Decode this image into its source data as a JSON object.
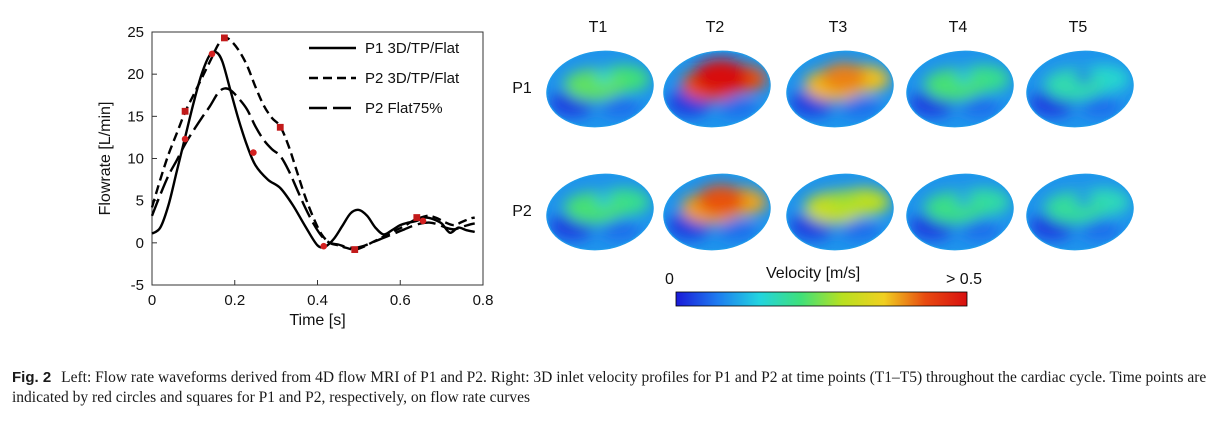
{
  "chart_data": {
    "type": "line",
    "xlabel": "Time [s]",
    "ylabel": "Flowrate [L/min]",
    "xlim": [
      0,
      0.8
    ],
    "ylim": [
      -5,
      25
    ],
    "xticks": [
      "0",
      "0.2",
      "0.4",
      "0.6",
      "0.8"
    ],
    "yticks": [
      "-5",
      "0",
      "5",
      "10",
      "15",
      "20",
      "25"
    ],
    "legend_position": "top-right",
    "series": [
      {
        "name": "P1 3D/TP/Flat",
        "style": "solid",
        "x": [
          0,
          0.02,
          0.04,
          0.06,
          0.08,
          0.1,
          0.12,
          0.14,
          0.155,
          0.17,
          0.19,
          0.21,
          0.23,
          0.25,
          0.28,
          0.31,
          0.34,
          0.37,
          0.4,
          0.42,
          0.44,
          0.46,
          0.48,
          0.5,
          0.52,
          0.54,
          0.56,
          0.58,
          0.6,
          0.62,
          0.64,
          0.66,
          0.68,
          0.7,
          0.72,
          0.74,
          0.76,
          0.78
        ],
        "y": [
          1.1,
          1.8,
          4.5,
          8.5,
          12.5,
          16.5,
          20.0,
          22.3,
          22.6,
          21.5,
          18.0,
          14.5,
          11.5,
          9.2,
          7.5,
          6.5,
          4.5,
          2.0,
          -0.3,
          -0.4,
          0.5,
          2.0,
          3.5,
          3.9,
          3.2,
          1.8,
          1.0,
          1.5,
          2.1,
          2.4,
          2.6,
          3.0,
          2.8,
          2.3,
          1.2,
          1.8,
          1.5,
          1.3
        ],
        "markers": {
          "shape": "circle",
          "x": [
            0.08,
            0.145,
            0.245,
            0.415,
            0.655
          ],
          "y": [
            12.3,
            22.4,
            10.7,
            -0.4,
            2.6
          ]
        }
      },
      {
        "name": "P2 3D/TP/Flat",
        "style": "dashed",
        "x": [
          0,
          0.02,
          0.04,
          0.06,
          0.08,
          0.1,
          0.12,
          0.14,
          0.16,
          0.175,
          0.19,
          0.21,
          0.23,
          0.25,
          0.27,
          0.29,
          0.31,
          0.33,
          0.35,
          0.37,
          0.39,
          0.41,
          0.43,
          0.45,
          0.47,
          0.49,
          0.51,
          0.53,
          0.55,
          0.57,
          0.59,
          0.61,
          0.63,
          0.65,
          0.67,
          0.69,
          0.71,
          0.73,
          0.75,
          0.77,
          0.78
        ],
        "y": [
          4.2,
          7.5,
          10.5,
          13.0,
          15.5,
          17.5,
          19.5,
          21.5,
          23.5,
          24.3,
          24.0,
          22.8,
          21.0,
          18.5,
          16.3,
          14.8,
          13.8,
          11.5,
          8.5,
          5.5,
          3.0,
          1.0,
          0.0,
          -0.3,
          -0.6,
          -0.8,
          -0.5,
          0.0,
          0.5,
          1.0,
          1.5,
          2.0,
          2.6,
          3.0,
          3.2,
          2.9,
          2.4,
          2.1,
          2.5,
          2.9,
          3.0
        ],
        "markers": {
          "shape": "square",
          "x": [
            0.08,
            0.175,
            0.31,
            0.49,
            0.64
          ],
          "y": [
            15.6,
            24.3,
            13.7,
            -0.8,
            3.0
          ]
        }
      },
      {
        "name": "P2 Flat75%",
        "style": "longdash",
        "x": [
          0,
          0.02,
          0.04,
          0.06,
          0.08,
          0.1,
          0.12,
          0.14,
          0.16,
          0.175,
          0.19,
          0.21,
          0.23,
          0.25,
          0.27,
          0.29,
          0.31,
          0.33,
          0.35,
          0.37,
          0.39,
          0.41,
          0.43,
          0.45,
          0.47,
          0.49,
          0.51,
          0.53,
          0.55,
          0.57,
          0.59,
          0.61,
          0.63,
          0.65,
          0.67,
          0.69,
          0.71,
          0.73,
          0.75,
          0.77,
          0.78
        ],
        "y": [
          3.2,
          5.7,
          8.0,
          9.8,
          11.7,
          13.3,
          14.8,
          16.2,
          17.8,
          18.3,
          18.1,
          17.1,
          15.8,
          13.8,
          12.2,
          11.1,
          10.3,
          8.6,
          6.4,
          4.2,
          2.3,
          0.8,
          0.0,
          -0.2,
          -0.5,
          -0.6,
          -0.4,
          0.0,
          0.4,
          0.8,
          1.2,
          1.6,
          2.0,
          2.3,
          2.4,
          2.2,
          1.8,
          1.6,
          1.9,
          2.2,
          2.3
        ]
      }
    ]
  },
  "velocity_grid": {
    "columns": [
      "T1",
      "T2",
      "T3",
      "T4",
      "T5"
    ],
    "rows": [
      "P1",
      "P2"
    ],
    "colorbar": {
      "title": "Velocity [m/s]",
      "min_label": "0",
      "max_label": "> 0.5",
      "colors": [
        "#1a1ad8",
        "#1e7cf0",
        "#22d4e0",
        "#3fe07a",
        "#b8e020",
        "#f0d020",
        "#e84a10",
        "#d81010"
      ]
    },
    "profiles": {
      "P1": [
        0.3,
        1.0,
        0.8,
        0.25,
        0.1
      ],
      "P2": [
        0.25,
        0.85,
        0.55,
        0.2,
        0.15
      ]
    }
  },
  "caption": {
    "label": "Fig. 2",
    "text": "Left: Flow rate waveforms derived from 4D flow MRI of P1 and P2. Right: 3D inlet velocity profiles for P1 and P2 at time points (T1–T5) throughout the cardiac cycle. Time points are indicated by red circles and squares for P1 and P2, respectively, on flow rate curves"
  }
}
